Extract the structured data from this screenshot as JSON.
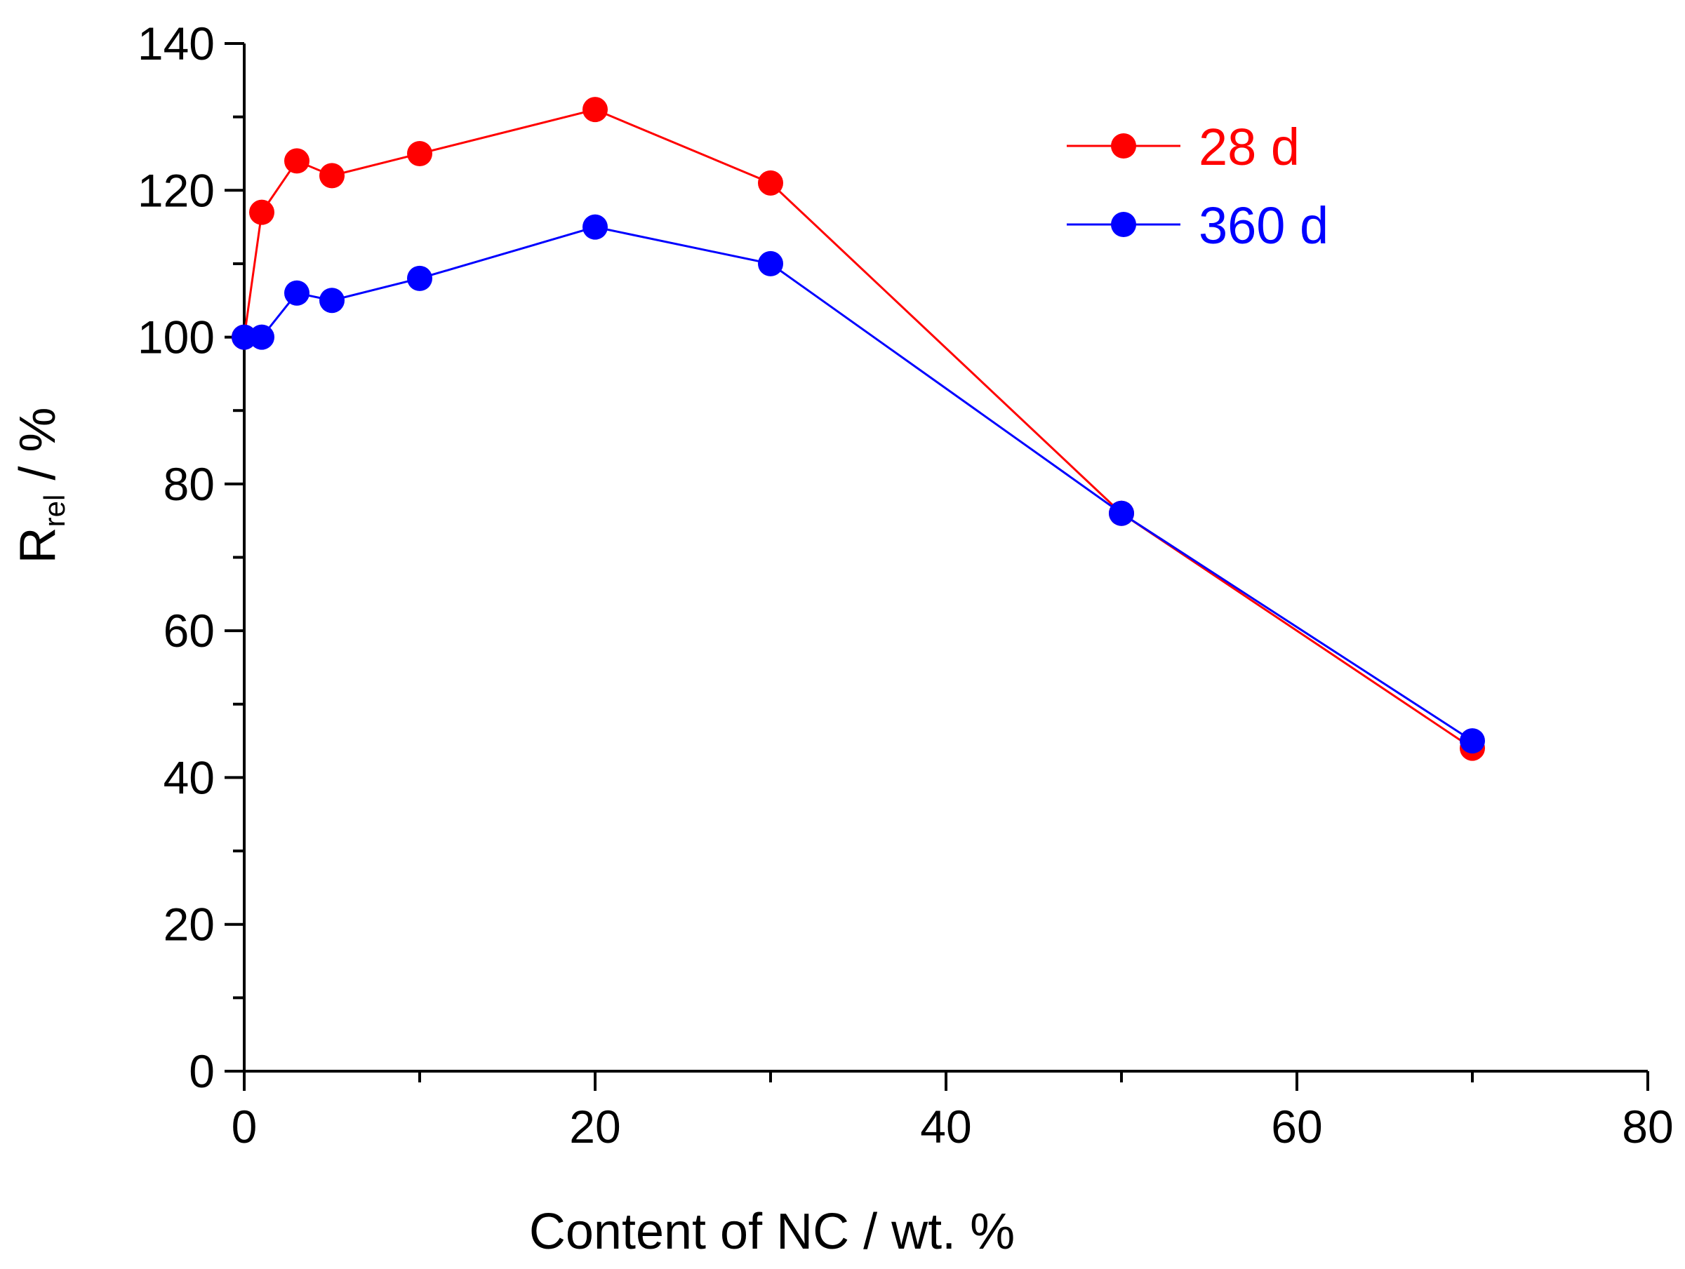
{
  "chart_data": {
    "type": "line",
    "xlabel": "Content of NC / wt. %",
    "ylabel_main": "R",
    "ylabel_sub": "rel",
    "ylabel_unit": " / %",
    "xlim": [
      0,
      80
    ],
    "ylim": [
      0,
      140
    ],
    "x_ticks": [
      0,
      20,
      40,
      60,
      80
    ],
    "y_ticks": [
      0,
      20,
      40,
      60,
      80,
      100,
      120,
      140
    ],
    "grid": false,
    "legend_position": "top-right",
    "series": [
      {
        "name": "28 d",
        "color": "#ff0000",
        "x": [
          0,
          1,
          3,
          5,
          10,
          20,
          30,
          50,
          70
        ],
        "y": [
          100,
          117,
          124,
          122,
          125,
          131,
          121,
          76,
          44
        ]
      },
      {
        "name": "360 d",
        "color": "#0000ff",
        "x": [
          0,
          1,
          3,
          5,
          10,
          20,
          30,
          50,
          70
        ],
        "y": [
          100,
          100,
          106,
          105,
          108,
          115,
          110,
          76,
          45
        ]
      }
    ]
  }
}
